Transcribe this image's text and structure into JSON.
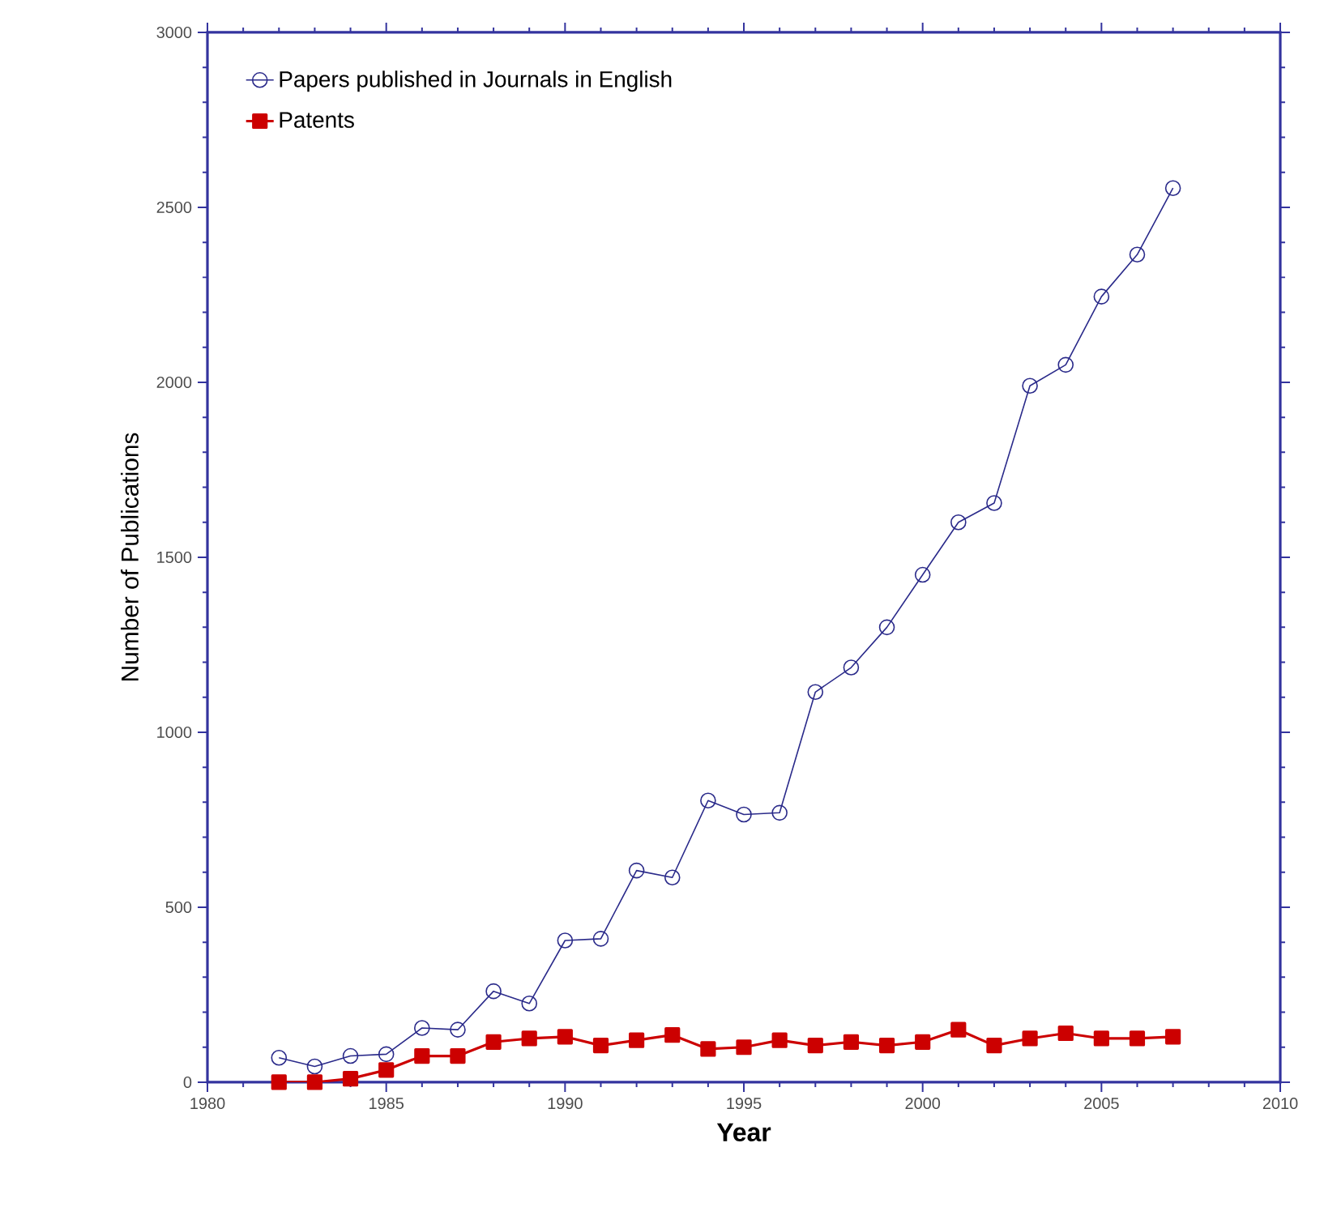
{
  "chart_data": {
    "type": "line",
    "xlabel": "Year",
    "ylabel": "Number of Publications",
    "x": [
      1982,
      1983,
      1984,
      1985,
      1986,
      1987,
      1988,
      1989,
      1990,
      1991,
      1992,
      1993,
      1994,
      1995,
      1996,
      1997,
      1998,
      1999,
      2000,
      2001,
      2002,
      2003,
      2004,
      2005,
      2006,
      2007
    ],
    "series": [
      {
        "name": "Papers published in Journals in English",
        "color": "#2a2a8a",
        "marker": "circle",
        "values": [
          70,
          45,
          75,
          80,
          155,
          150,
          260,
          225,
          405,
          410,
          605,
          585,
          805,
          765,
          770,
          1115,
          1185,
          1300,
          1450,
          1600,
          1655,
          1990,
          2050,
          2245,
          2365,
          2555
        ]
      },
      {
        "name": "Patents",
        "color": "#cc0000",
        "marker": "square",
        "values": [
          0,
          0,
          10,
          35,
          75,
          75,
          115,
          125,
          130,
          105,
          120,
          135,
          95,
          100,
          120,
          105,
          115,
          105,
          115,
          150,
          105,
          125,
          140,
          125,
          125,
          130
        ]
      }
    ],
    "xlim": [
      1980,
      2010
    ],
    "xticks": [
      1980,
      1985,
      1990,
      1995,
      2000,
      2005,
      2010
    ],
    "ylim": [
      0,
      3000
    ],
    "yticks": [
      0,
      500,
      1000,
      1500,
      2000,
      2500,
      3000
    ],
    "legend": "top left",
    "grid": false,
    "line_style": "solid"
  }
}
